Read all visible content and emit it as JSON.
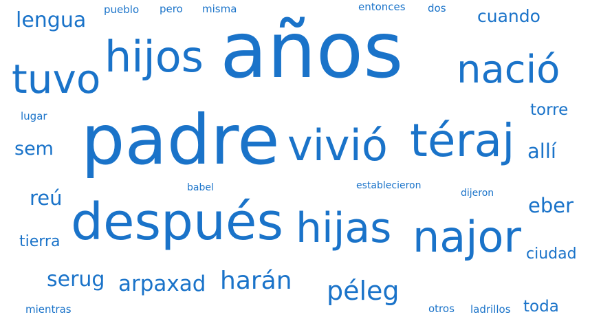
{
  "color": "#1a73c9",
  "words": [
    {
      "text": "años",
      "weight": 100
    },
    {
      "text": "padre",
      "weight": 80
    },
    {
      "text": "después",
      "weight": 66
    },
    {
      "text": "najor",
      "weight": 56
    },
    {
      "text": "téraj",
      "weight": 56
    },
    {
      "text": "vivió",
      "weight": 54
    },
    {
      "text": "hijos",
      "weight": 54
    },
    {
      "text": "hijas",
      "weight": 52
    },
    {
      "text": "tuvo",
      "weight": 50
    },
    {
      "text": "nació",
      "weight": 50
    },
    {
      "text": "péleg",
      "weight": 34
    },
    {
      "text": "harán",
      "weight": 32
    },
    {
      "text": "arpaxad",
      "weight": 29
    },
    {
      "text": "serug",
      "weight": 27
    },
    {
      "text": "lengua",
      "weight": 27
    },
    {
      "text": "cuando",
      "weight": 24
    },
    {
      "text": "sem",
      "weight": 25
    },
    {
      "text": "reú",
      "weight": 27
    },
    {
      "text": "eber",
      "weight": 27
    },
    {
      "text": "allí",
      "weight": 27
    },
    {
      "text": "torre",
      "weight": 22
    },
    {
      "text": "tierra",
      "weight": 21
    },
    {
      "text": "ciudad",
      "weight": 21
    },
    {
      "text": "toda",
      "weight": 22
    },
    {
      "text": "pueblo",
      "weight": 14
    },
    {
      "text": "pero",
      "weight": 14
    },
    {
      "text": "misma",
      "weight": 14
    },
    {
      "text": "entonces",
      "weight": 14
    },
    {
      "text": "dos",
      "weight": 14
    },
    {
      "text": "lugar",
      "weight": 14
    },
    {
      "text": "babel",
      "weight": 14
    },
    {
      "text": "establecieron",
      "weight": 14
    },
    {
      "text": "dijeron",
      "weight": 14
    },
    {
      "text": "mientras",
      "weight": 14
    },
    {
      "text": "otros",
      "weight": 14
    },
    {
      "text": "ladrillos",
      "weight": 14
    }
  ]
}
